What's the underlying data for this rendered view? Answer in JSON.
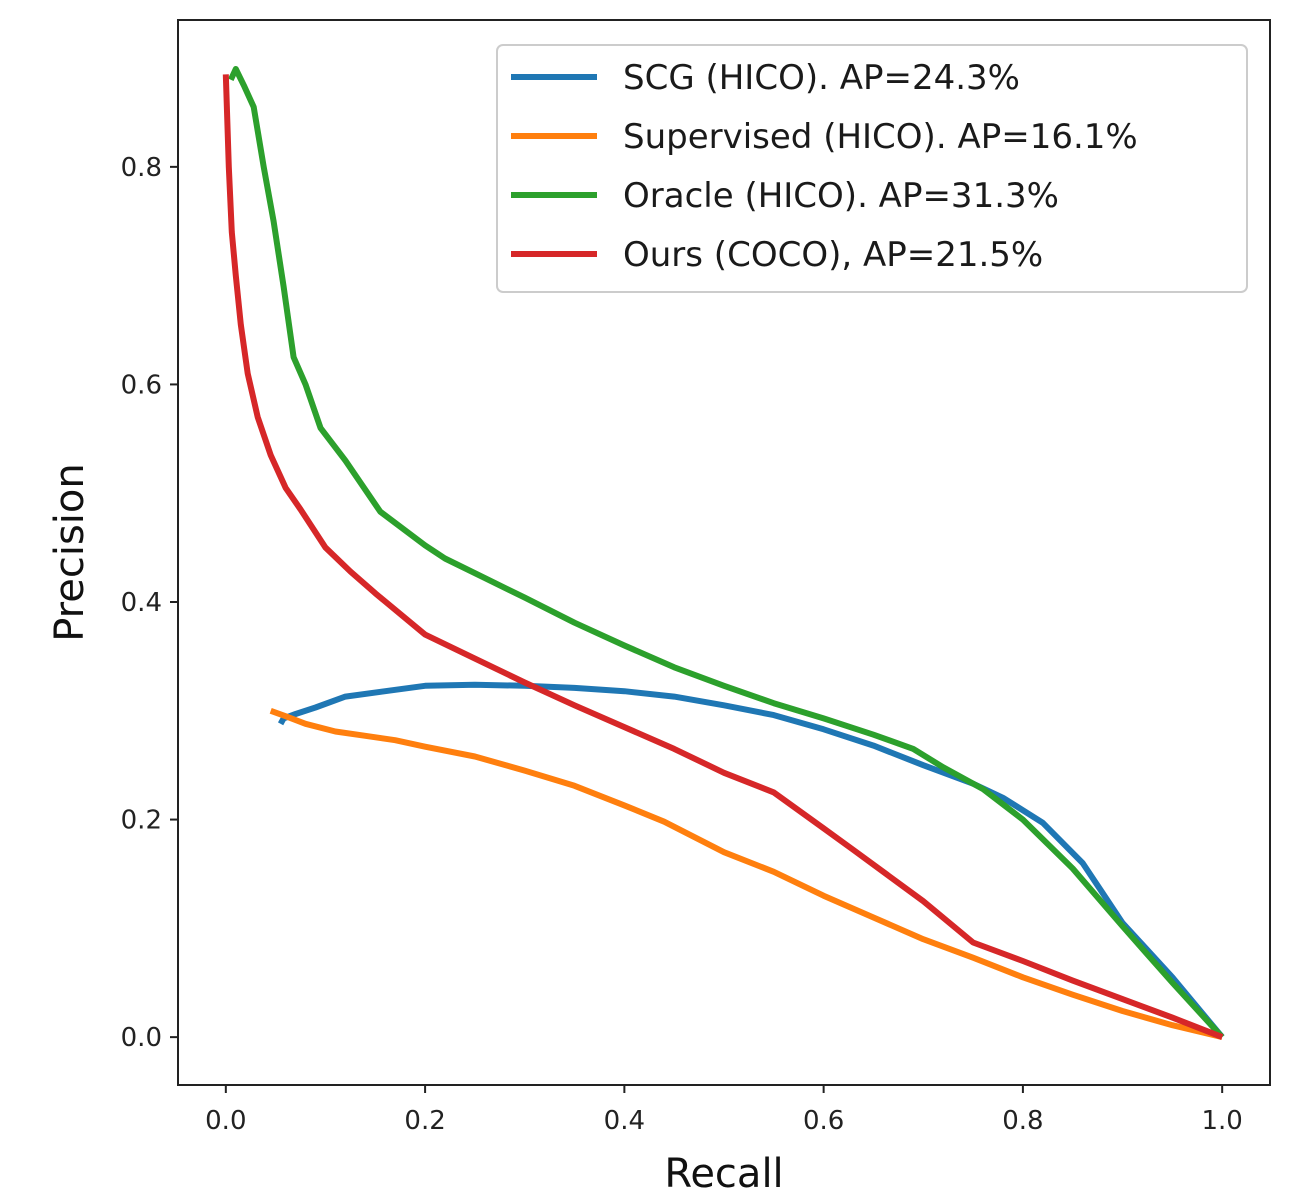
{
  "chart_data": {
    "type": "line",
    "title": "",
    "xlabel": "Recall",
    "ylabel": "Precision",
    "xlim": [
      -0.048,
      1.048
    ],
    "ylim": [
      -0.044,
      0.935
    ],
    "xticks": [
      0.0,
      0.2,
      0.4,
      0.6,
      0.8,
      1.0
    ],
    "yticks": [
      0.0,
      0.2,
      0.4,
      0.6,
      0.8
    ],
    "xtick_labels": [
      "0.0",
      "0.2",
      "0.4",
      "0.6",
      "0.8",
      "1.0"
    ],
    "ytick_labels": [
      "0.0",
      "0.2",
      "0.4",
      "0.6",
      "0.8"
    ],
    "grid": false,
    "legend_position": "top-right",
    "series": [
      {
        "name": "SCG (HICO). AP=24.3%",
        "color": "#1f77b4",
        "x": [
          0.055,
          0.058,
          0.07,
          0.09,
          0.12,
          0.16,
          0.2,
          0.25,
          0.3,
          0.35,
          0.4,
          0.45,
          0.5,
          0.55,
          0.6,
          0.65,
          0.7,
          0.75,
          0.78,
          0.82,
          0.86,
          0.9,
          0.95,
          1.0
        ],
        "y": [
          0.288,
          0.293,
          0.297,
          0.303,
          0.313,
          0.318,
          0.323,
          0.324,
          0.323,
          0.321,
          0.318,
          0.313,
          0.305,
          0.296,
          0.283,
          0.268,
          0.25,
          0.233,
          0.22,
          0.197,
          0.16,
          0.105,
          0.055,
          0.0
        ]
      },
      {
        "name": "Supervised (HICO). AP=16.1%",
        "color": "#ff7f0e",
        "x": [
          0.045,
          0.06,
          0.08,
          0.11,
          0.14,
          0.17,
          0.2,
          0.25,
          0.3,
          0.35,
          0.4,
          0.44,
          0.5,
          0.55,
          0.6,
          0.65,
          0.7,
          0.75,
          0.8,
          0.85,
          0.9,
          0.95,
          1.0
        ],
        "y": [
          0.3,
          0.295,
          0.288,
          0.281,
          0.277,
          0.273,
          0.267,
          0.258,
          0.245,
          0.231,
          0.213,
          0.198,
          0.17,
          0.152,
          0.13,
          0.11,
          0.09,
          0.073,
          0.055,
          0.039,
          0.024,
          0.011,
          0.0
        ]
      },
      {
        "name": "Oracle (HICO). AP=31.3%",
        "color": "#2ca02c",
        "x": [
          0.005,
          0.01,
          0.018,
          0.028,
          0.038,
          0.048,
          0.058,
          0.068,
          0.08,
          0.095,
          0.12,
          0.155,
          0.2,
          0.22,
          0.26,
          0.3,
          0.35,
          0.4,
          0.45,
          0.5,
          0.55,
          0.6,
          0.65,
          0.69,
          0.72,
          0.76,
          0.8,
          0.85,
          0.9,
          0.95,
          1.0
        ],
        "y": [
          0.88,
          0.89,
          0.875,
          0.855,
          0.8,
          0.75,
          0.69,
          0.625,
          0.6,
          0.56,
          0.53,
          0.483,
          0.452,
          0.44,
          0.422,
          0.404,
          0.381,
          0.36,
          0.34,
          0.323,
          0.307,
          0.293,
          0.278,
          0.265,
          0.248,
          0.228,
          0.2,
          0.155,
          0.102,
          0.05,
          0.0
        ]
      },
      {
        "name": "Ours (COCO), AP=21.5%",
        "color": "#d62728",
        "x": [
          0.0,
          0.003,
          0.006,
          0.01,
          0.015,
          0.022,
          0.032,
          0.045,
          0.06,
          0.075,
          0.1,
          0.125,
          0.15,
          0.2,
          0.25,
          0.3,
          0.35,
          0.4,
          0.45,
          0.5,
          0.55,
          0.6,
          0.63,
          0.7,
          0.75,
          0.8,
          0.85,
          0.9,
          0.95,
          1.0
        ],
        "y": [
          0.885,
          0.8,
          0.74,
          0.7,
          0.655,
          0.61,
          0.57,
          0.535,
          0.505,
          0.485,
          0.45,
          0.428,
          0.408,
          0.37,
          0.348,
          0.326,
          0.305,
          0.285,
          0.265,
          0.243,
          0.225,
          0.192,
          0.172,
          0.125,
          0.087,
          0.07,
          0.052,
          0.035,
          0.018,
          0.0
        ]
      }
    ]
  }
}
